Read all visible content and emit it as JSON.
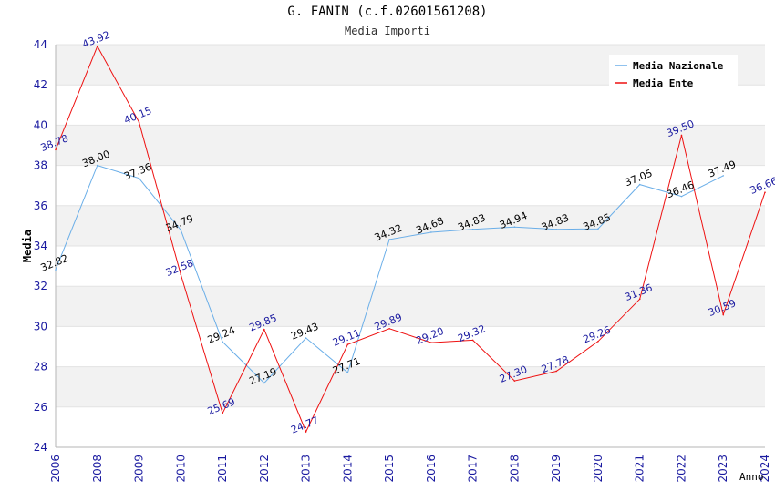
{
  "chart_data": {
    "type": "line",
    "title": "G. FANIN (c.f.02601561208)",
    "subtitle": "Media Importi",
    "xlabel": "Anno",
    "ylabel": "Media",
    "ylim": [
      24,
      44
    ],
    "yticks": [
      "24",
      "26",
      "28",
      "30",
      "32",
      "34",
      "36",
      "38",
      "40",
      "42",
      "44"
    ],
    "categories": [
      "2006",
      "2008",
      "2009",
      "2010",
      "2011",
      "2012",
      "2013",
      "2014",
      "2015",
      "2016",
      "2017",
      "2018",
      "2019",
      "2020",
      "2021",
      "2022",
      "2023",
      "2024"
    ],
    "grid": true,
    "legend_position": "top-right",
    "series": [
      {
        "name": "Media Nazionale",
        "color": "#6aaee8",
        "label_color": "#000000",
        "values": [
          32.82,
          38.0,
          37.36,
          34.79,
          29.24,
          27.19,
          29.43,
          27.71,
          34.32,
          34.68,
          34.83,
          34.94,
          34.83,
          34.85,
          37.05,
          36.46,
          37.49,
          null
        ],
        "labels": [
          "32.82",
          "38.00",
          "37.36",
          "34.79",
          "29.24",
          "27.19",
          "29.43",
          "27.71",
          "34.32",
          "34.68",
          "34.83",
          "34.94",
          "34.83",
          "34.85",
          "37.05",
          "36.46",
          "37.49",
          ""
        ]
      },
      {
        "name": "Media Ente",
        "color": "#ee1111",
        "label_color": "#1a1aa0",
        "values": [
          38.78,
          43.92,
          40.15,
          32.58,
          25.69,
          29.85,
          24.77,
          29.11,
          29.89,
          29.2,
          29.32,
          27.3,
          27.78,
          29.26,
          31.36,
          39.5,
          30.59,
          36.66
        ],
        "labels": [
          "38.78",
          "43.92",
          "40.15",
          "32.58",
          "25.69",
          "29.85",
          "24.77",
          "29.11",
          "29.89",
          "29.20",
          "29.32",
          "27.30",
          "27.78",
          "29.26",
          "31.36",
          "39.50",
          "30.59",
          "36.66"
        ]
      }
    ]
  }
}
